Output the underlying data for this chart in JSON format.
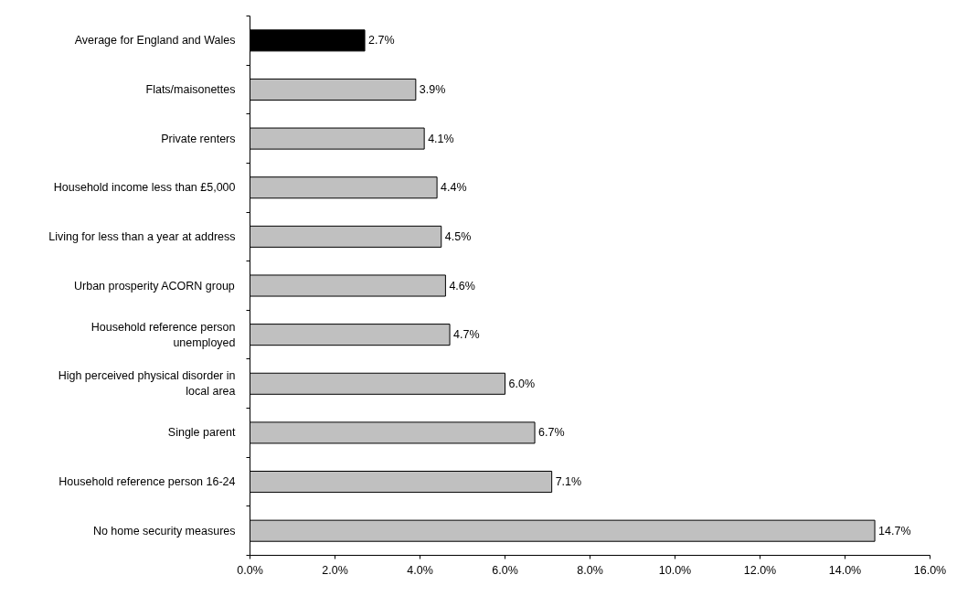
{
  "chart_data": {
    "type": "bar",
    "orientation": "horizontal",
    "categories": [
      "Average for England and Wales",
      "Flats/maisonettes",
      "Private renters",
      "Household income less than £5,000",
      "Living for less than a year at address",
      "Urban prosperity ACORN group",
      "Household reference person\nunemployed",
      "High perceived physical disorder in\nlocal area",
      "Single parent",
      "Household reference person 16-24",
      "No home security measures"
    ],
    "values": [
      2.7,
      3.9,
      4.1,
      4.4,
      4.5,
      4.6,
      4.7,
      6.0,
      6.7,
      7.1,
      14.7
    ],
    "colors": [
      "#000000",
      "#c0c0c0",
      "#c0c0c0",
      "#c0c0c0",
      "#c0c0c0",
      "#c0c0c0",
      "#c0c0c0",
      "#c0c0c0",
      "#c0c0c0",
      "#c0c0c0",
      "#c0c0c0"
    ],
    "value_labels": [
      "2.7%",
      "3.9%",
      "4.1%",
      "4.4%",
      "4.5%",
      "4.6%",
      "4.7%",
      "6.0%",
      "6.7%",
      "7.1%",
      "14.7%"
    ],
    "xlim": [
      0,
      16
    ],
    "xticks": [
      {
        "value": 0,
        "label": "0.0%"
      },
      {
        "value": 2,
        "label": "2.0%"
      },
      {
        "value": 4,
        "label": "4.0%"
      },
      {
        "value": 6,
        "label": "6.0%"
      },
      {
        "value": 8,
        "label": "8.0%"
      },
      {
        "value": 10,
        "label": "10.0%"
      },
      {
        "value": 12,
        "label": "12.0%"
      },
      {
        "value": 14,
        "label": "14.0%"
      },
      {
        "value": 16,
        "label": "16.0%"
      }
    ],
    "grid": false
  }
}
